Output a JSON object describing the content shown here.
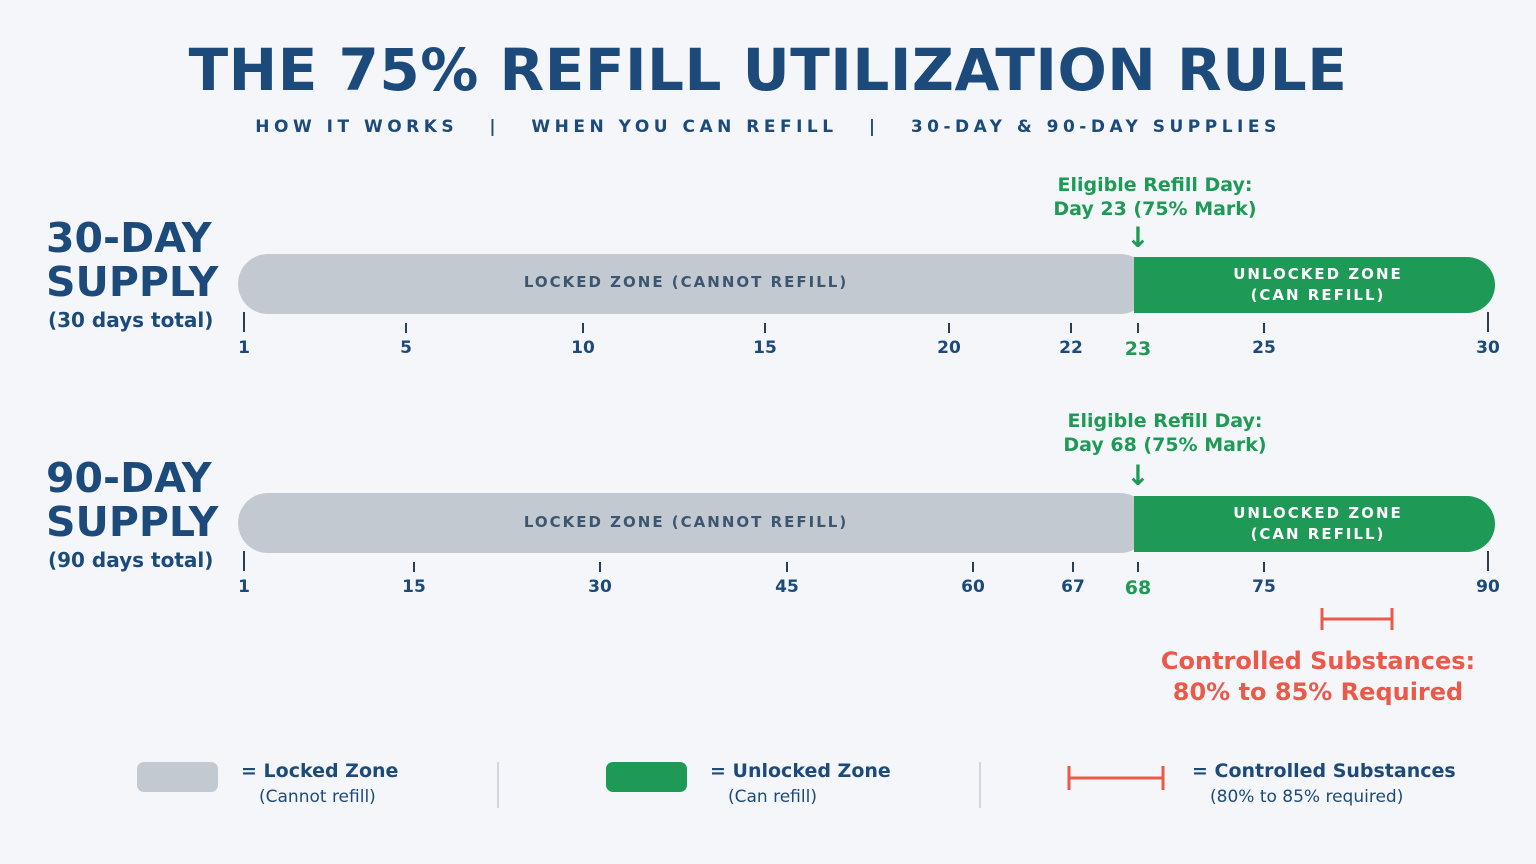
{
  "title": "THE 75% REFILL UTILIZATION RULE",
  "subtitle": "HOW IT WORKS   |   WHEN YOU CAN REFILL   |   30-DAY & 90-DAY SUPPLIES",
  "rows": [
    {
      "title_line1": "30-DAY",
      "title_line2": "SUPPLY",
      "subtitle": "(30 days total)",
      "eligible_line1": "Eligible Refill Day:",
      "eligible_line2": "Day 23 (75% Mark)",
      "locked_label": "LOCKED ZONE (CANNOT REFILL)",
      "unlocked_line1": "UNLOCKED ZONE",
      "unlocked_line2": "(CAN REFILL)",
      "ticks": [
        "1",
        "5",
        "10",
        "15",
        "20",
        "22",
        "23",
        "25",
        "30"
      ],
      "highlight_tick": "23"
    },
    {
      "title_line1": "90-DAY",
      "title_line2": "SUPPLY",
      "subtitle": "(90 days total)",
      "eligible_line1": "Eligible Refill Day:",
      "eligible_line2": "Day 68 (75% Mark)",
      "locked_label": "LOCKED ZONE (CANNOT REFILL)",
      "unlocked_line1": "UNLOCKED ZONE",
      "unlocked_line2": "(CAN REFILL)",
      "ticks": [
        "1",
        "15",
        "30",
        "45",
        "60",
        "67",
        "68",
        "75",
        "90"
      ],
      "highlight_tick": "68"
    }
  ],
  "controlled": {
    "line1": "Controlled Substances:",
    "line2": "80% to 85% Required"
  },
  "legend": {
    "locked_label": "= Locked Zone",
    "locked_sub": "(Cannot refill)",
    "unlocked_label": "= Unlocked Zone",
    "unlocked_sub": "(Can refill)",
    "controlled_label": "= Controlled Substances",
    "controlled_sub": "(80% to 85% required)"
  },
  "colors": {
    "locked": "#c3c9d1",
    "unlocked": "#1f9a56",
    "controlled": "#ea5a4a",
    "text": "#1c4a7b"
  }
}
